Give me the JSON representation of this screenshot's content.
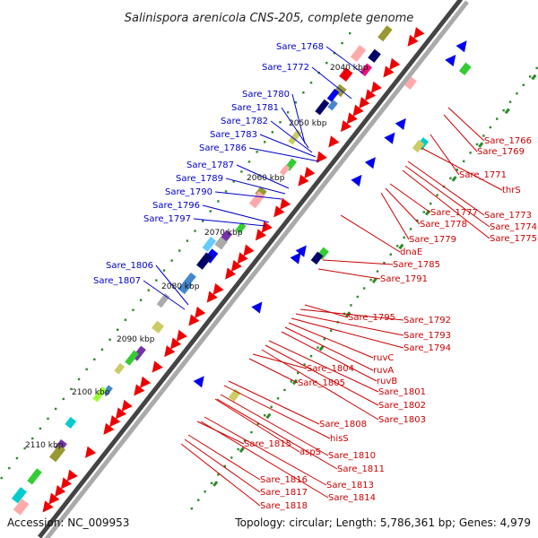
{
  "title": "Salinispora arenicola CNS-205, complete genome",
  "accession": "Accession: NC_009953",
  "topology": "Topology: circular; Length: 5,786,361 bp; Genes: 4,979",
  "kbp_marks": [
    "2040 kbp",
    "2050 kbp",
    "2060 kbp",
    "2070 kbp",
    "2080 kbp",
    "2090 kbp",
    "2100 kbp",
    "2110 kbp"
  ],
  "labels_left": [
    "Sare_1768",
    "Sare_1772",
    "Sare_1780",
    "Sare_1781",
    "Sare_1782",
    "Sare_1783",
    "Sare_1786",
    "Sare_1787",
    "Sare_1789",
    "Sare_1790",
    "Sare_1796",
    "Sare_1797",
    "Sare_1806",
    "Sare_1807"
  ],
  "labels_right": [
    "Sare_1766",
    "Sare_1769",
    "Sare_1771",
    "thrS",
    "Sare_1773",
    "Sare_1774",
    "Sare_1775",
    "Sare_1777",
    "Sare_1778",
    "Sare_1779",
    "dnaE",
    "Sare_1785",
    "Sare_1791",
    "Sare_1795",
    "Sare_1792",
    "Sare_1793",
    "Sare_1794",
    "ruvC",
    "ruvA",
    "ruvB",
    "Sare_1804",
    "Sare_1805",
    "Sare_1801",
    "Sare_1802",
    "Sare_1803",
    "Sare_1808",
    "hisS",
    "Sare_1815",
    "aspS",
    "Sare_1810",
    "Sare_1811",
    "Sare_1816",
    "Sare_1813",
    "Sare_1817",
    "Sare_1814",
    "Sare_1818"
  ],
  "colors": {
    "left_label": "#0000cc",
    "right_label": "#cc0000",
    "backbone": "#777777",
    "forward_gene": "#ee0000",
    "reverse_gene": "#0000ee",
    "tick": "#2a8a2a"
  }
}
